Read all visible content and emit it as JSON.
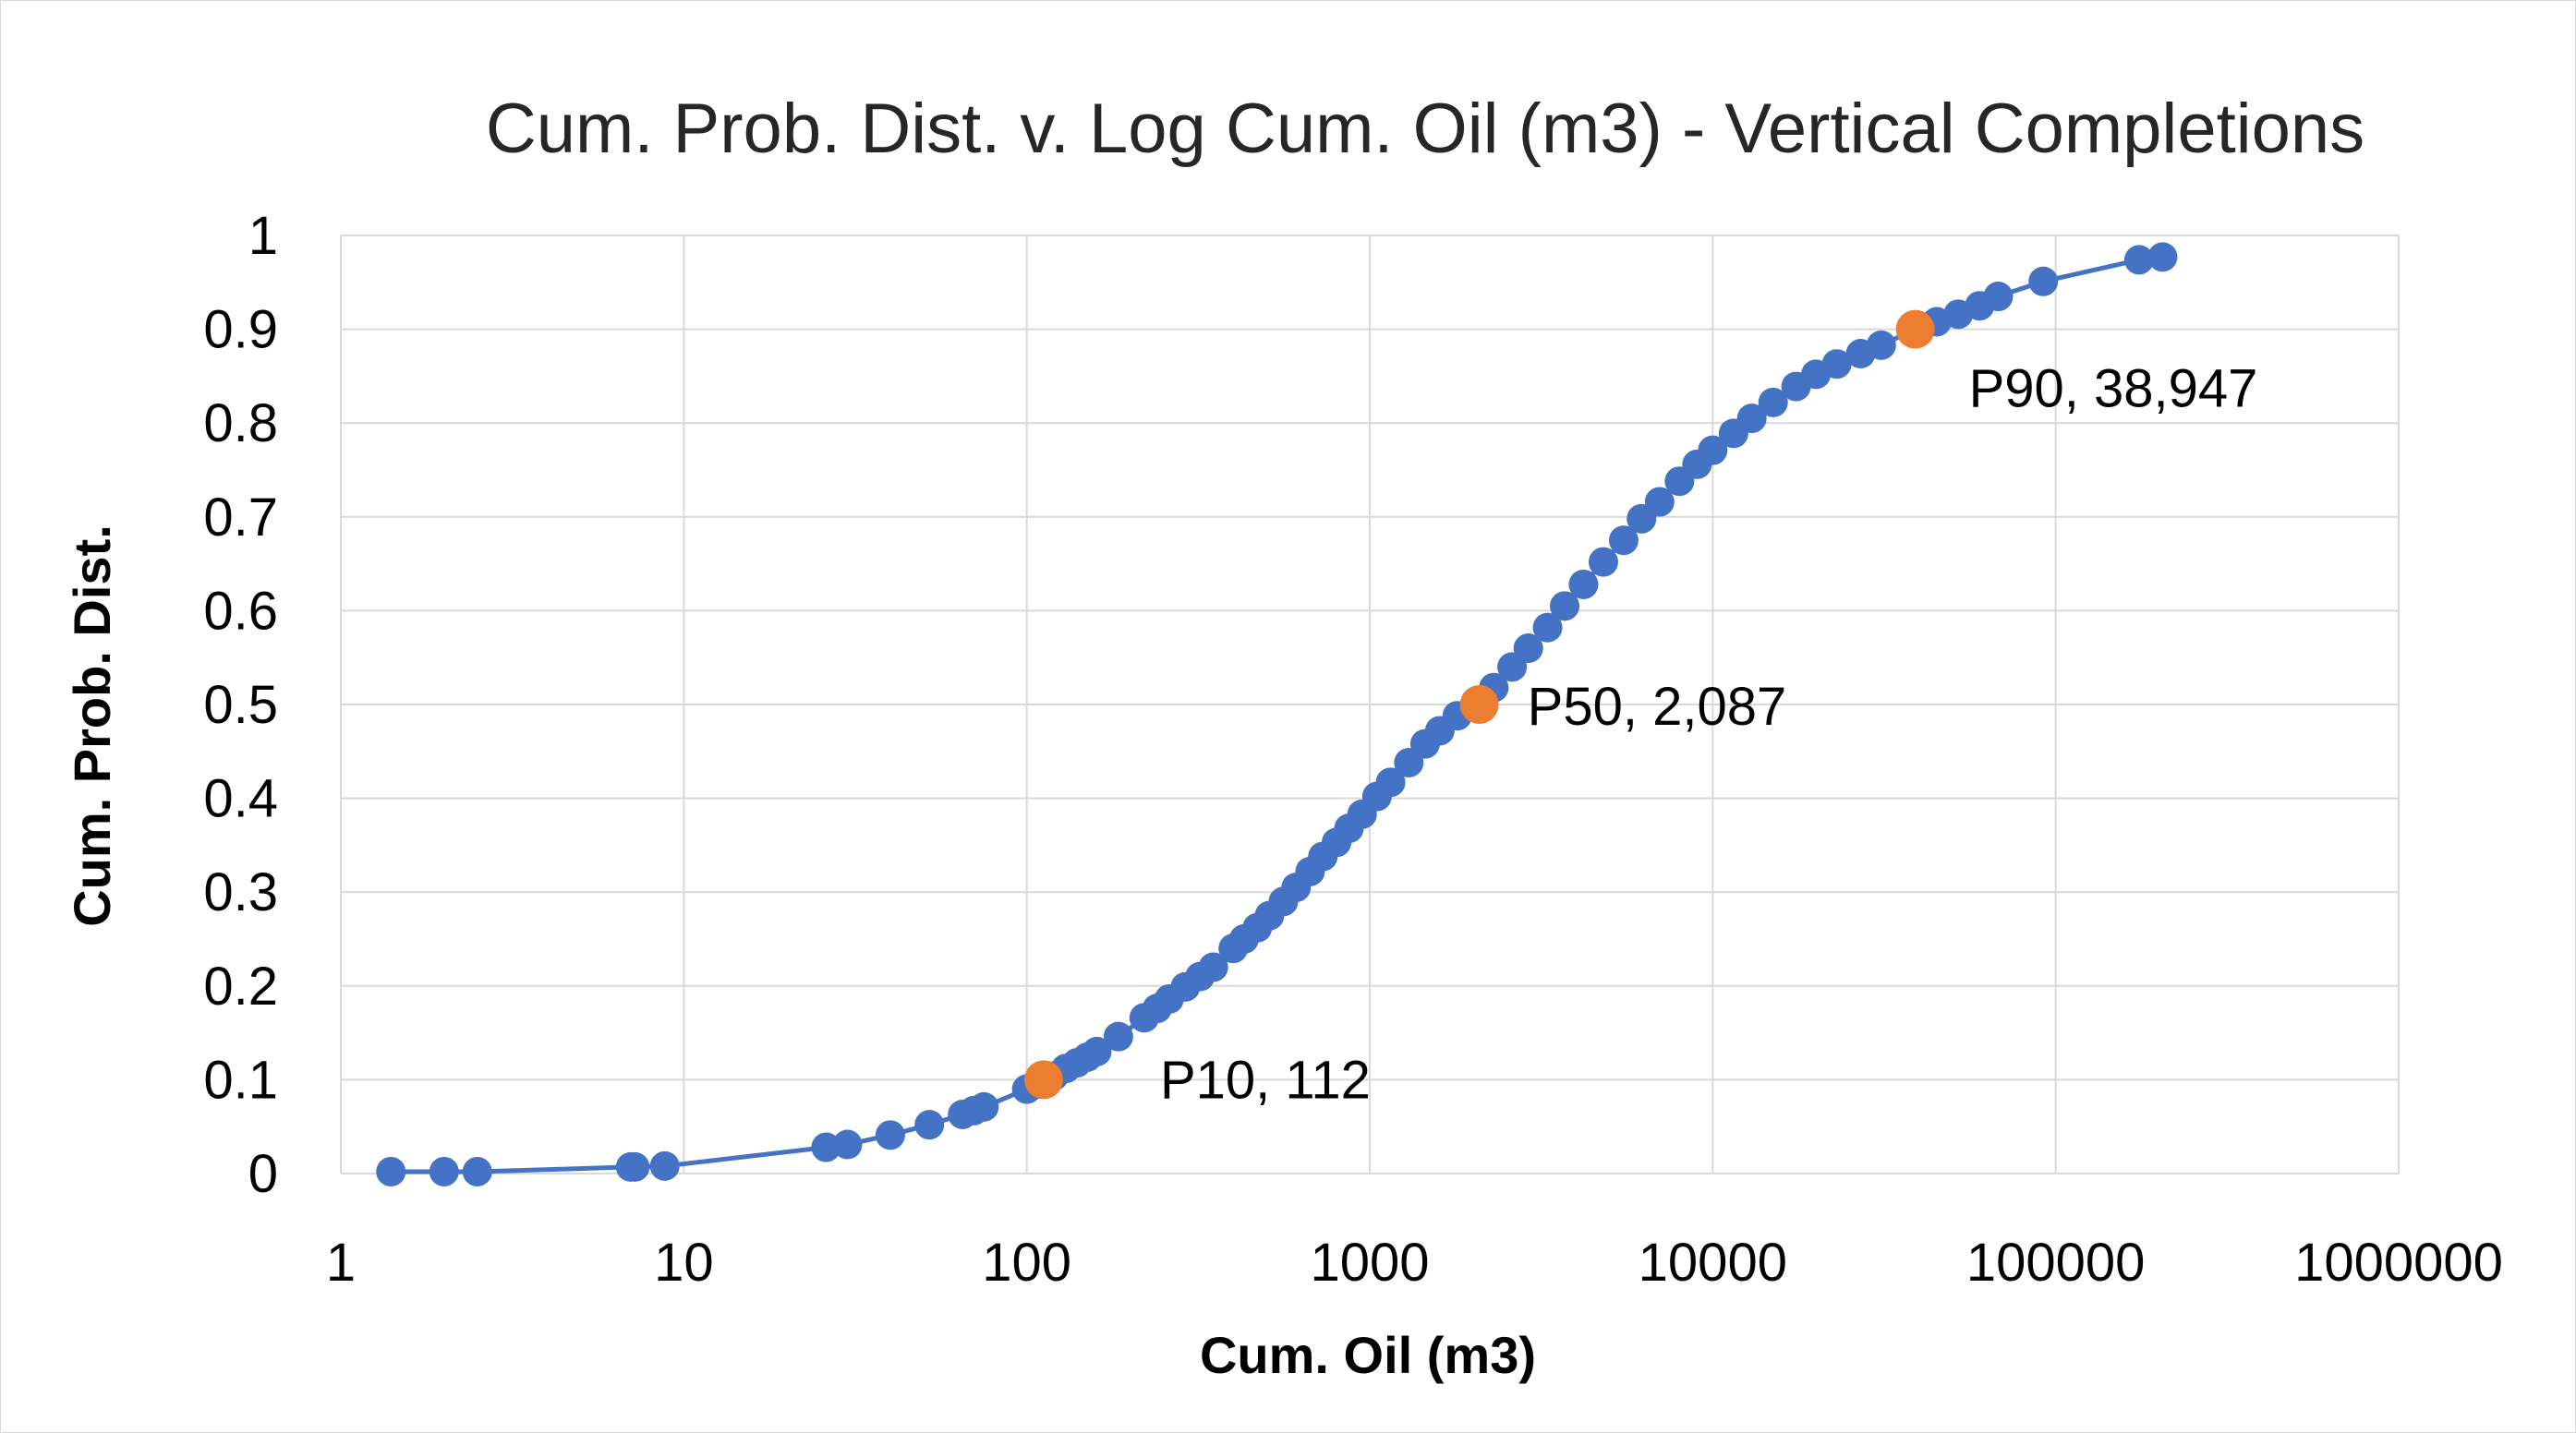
{
  "chart_data": {
    "type": "scatter",
    "title": "Cum. Prob. Dist. v. Log Cum. Oil (m3) - Vertical Completions",
    "xlabel": "Cum. Oil (m3)",
    "ylabel": "Cum. Prob. Dist.",
    "x_scale": "log",
    "xlim": [
      1,
      1000000
    ],
    "ylim": [
      0,
      1
    ],
    "x_ticks": [
      "1",
      "10",
      "100",
      "1000",
      "10000",
      "100000",
      "1000000"
    ],
    "y_ticks": [
      "0",
      "0.1",
      "0.2",
      "0.3",
      "0.4",
      "0.5",
      "0.6",
      "0.7",
      "0.8",
      "0.9",
      "1"
    ],
    "grid": true,
    "legend": "none",
    "colors": {
      "series": "#4472C4",
      "percentiles": "#ED7D31"
    },
    "series": [
      {
        "type": "line+markers",
        "color": "#4472C4",
        "points": [
          [
            1.4,
            0.002
          ],
          [
            2.0,
            0.002
          ],
          [
            2.5,
            0.002
          ],
          [
            7.0,
            0.007
          ],
          [
            7.2,
            0.007
          ],
          [
            8.8,
            0.008
          ],
          [
            26,
            0.028
          ],
          [
            30,
            0.031
          ],
          [
            40,
            0.041
          ],
          [
            52,
            0.052
          ],
          [
            65,
            0.063
          ],
          [
            70,
            0.067
          ],
          [
            75,
            0.071
          ],
          [
            100,
            0.09
          ],
          [
            106,
            0.095
          ],
          [
            120,
            0.104
          ],
          [
            130,
            0.112
          ],
          [
            140,
            0.118
          ],
          [
            150,
            0.124
          ],
          [
            160,
            0.13
          ],
          [
            185,
            0.146
          ],
          [
            220,
            0.166
          ],
          [
            240,
            0.176
          ],
          [
            260,
            0.186
          ],
          [
            290,
            0.199
          ],
          [
            320,
            0.21
          ],
          [
            350,
            0.22
          ],
          [
            400,
            0.24
          ],
          [
            430,
            0.25
          ],
          [
            470,
            0.262
          ],
          [
            510,
            0.275
          ],
          [
            560,
            0.29
          ],
          [
            610,
            0.305
          ],
          [
            670,
            0.322
          ],
          [
            730,
            0.338
          ],
          [
            800,
            0.353
          ],
          [
            870,
            0.368
          ],
          [
            950,
            0.383
          ],
          [
            1050,
            0.402
          ],
          [
            1150,
            0.417
          ],
          [
            1300,
            0.438
          ],
          [
            1450,
            0.458
          ],
          [
            1600,
            0.472
          ],
          [
            1800,
            0.488
          ],
          [
            2087,
            0.5
          ],
          [
            2300,
            0.518
          ],
          [
            2600,
            0.54
          ],
          [
            2900,
            0.56
          ],
          [
            3300,
            0.582
          ],
          [
            3700,
            0.605
          ],
          [
            4200,
            0.628
          ],
          [
            4800,
            0.652
          ],
          [
            5500,
            0.675
          ],
          [
            6200,
            0.698
          ],
          [
            7000,
            0.716
          ],
          [
            8000,
            0.738
          ],
          [
            9000,
            0.756
          ],
          [
            10000,
            0.771
          ],
          [
            11500,
            0.789
          ],
          [
            13000,
            0.805
          ],
          [
            15000,
            0.822
          ],
          [
            17500,
            0.839
          ],
          [
            20000,
            0.852
          ],
          [
            23000,
            0.863
          ],
          [
            27000,
            0.874
          ],
          [
            31000,
            0.883
          ],
          [
            38947,
            0.9
          ],
          [
            45000,
            0.908
          ],
          [
            52000,
            0.916
          ],
          [
            60000,
            0.925
          ],
          [
            68000,
            0.935
          ],
          [
            92000,
            0.951
          ],
          [
            175000,
            0.974
          ],
          [
            205000,
            0.977
          ]
        ]
      },
      {
        "type": "markers",
        "color": "#ED7D31",
        "points": [
          [
            112,
            0.1
          ],
          [
            2087,
            0.5
          ],
          [
            38947,
            0.9
          ]
        ]
      }
    ],
    "annotations": [
      {
        "text": "P10, 112",
        "x": 112,
        "y": 0.1
      },
      {
        "text": "P50, 2,087",
        "x": 2087,
        "y": 0.5
      },
      {
        "text": "P90, 38,947",
        "x": 38947,
        "y": 0.9
      }
    ]
  }
}
